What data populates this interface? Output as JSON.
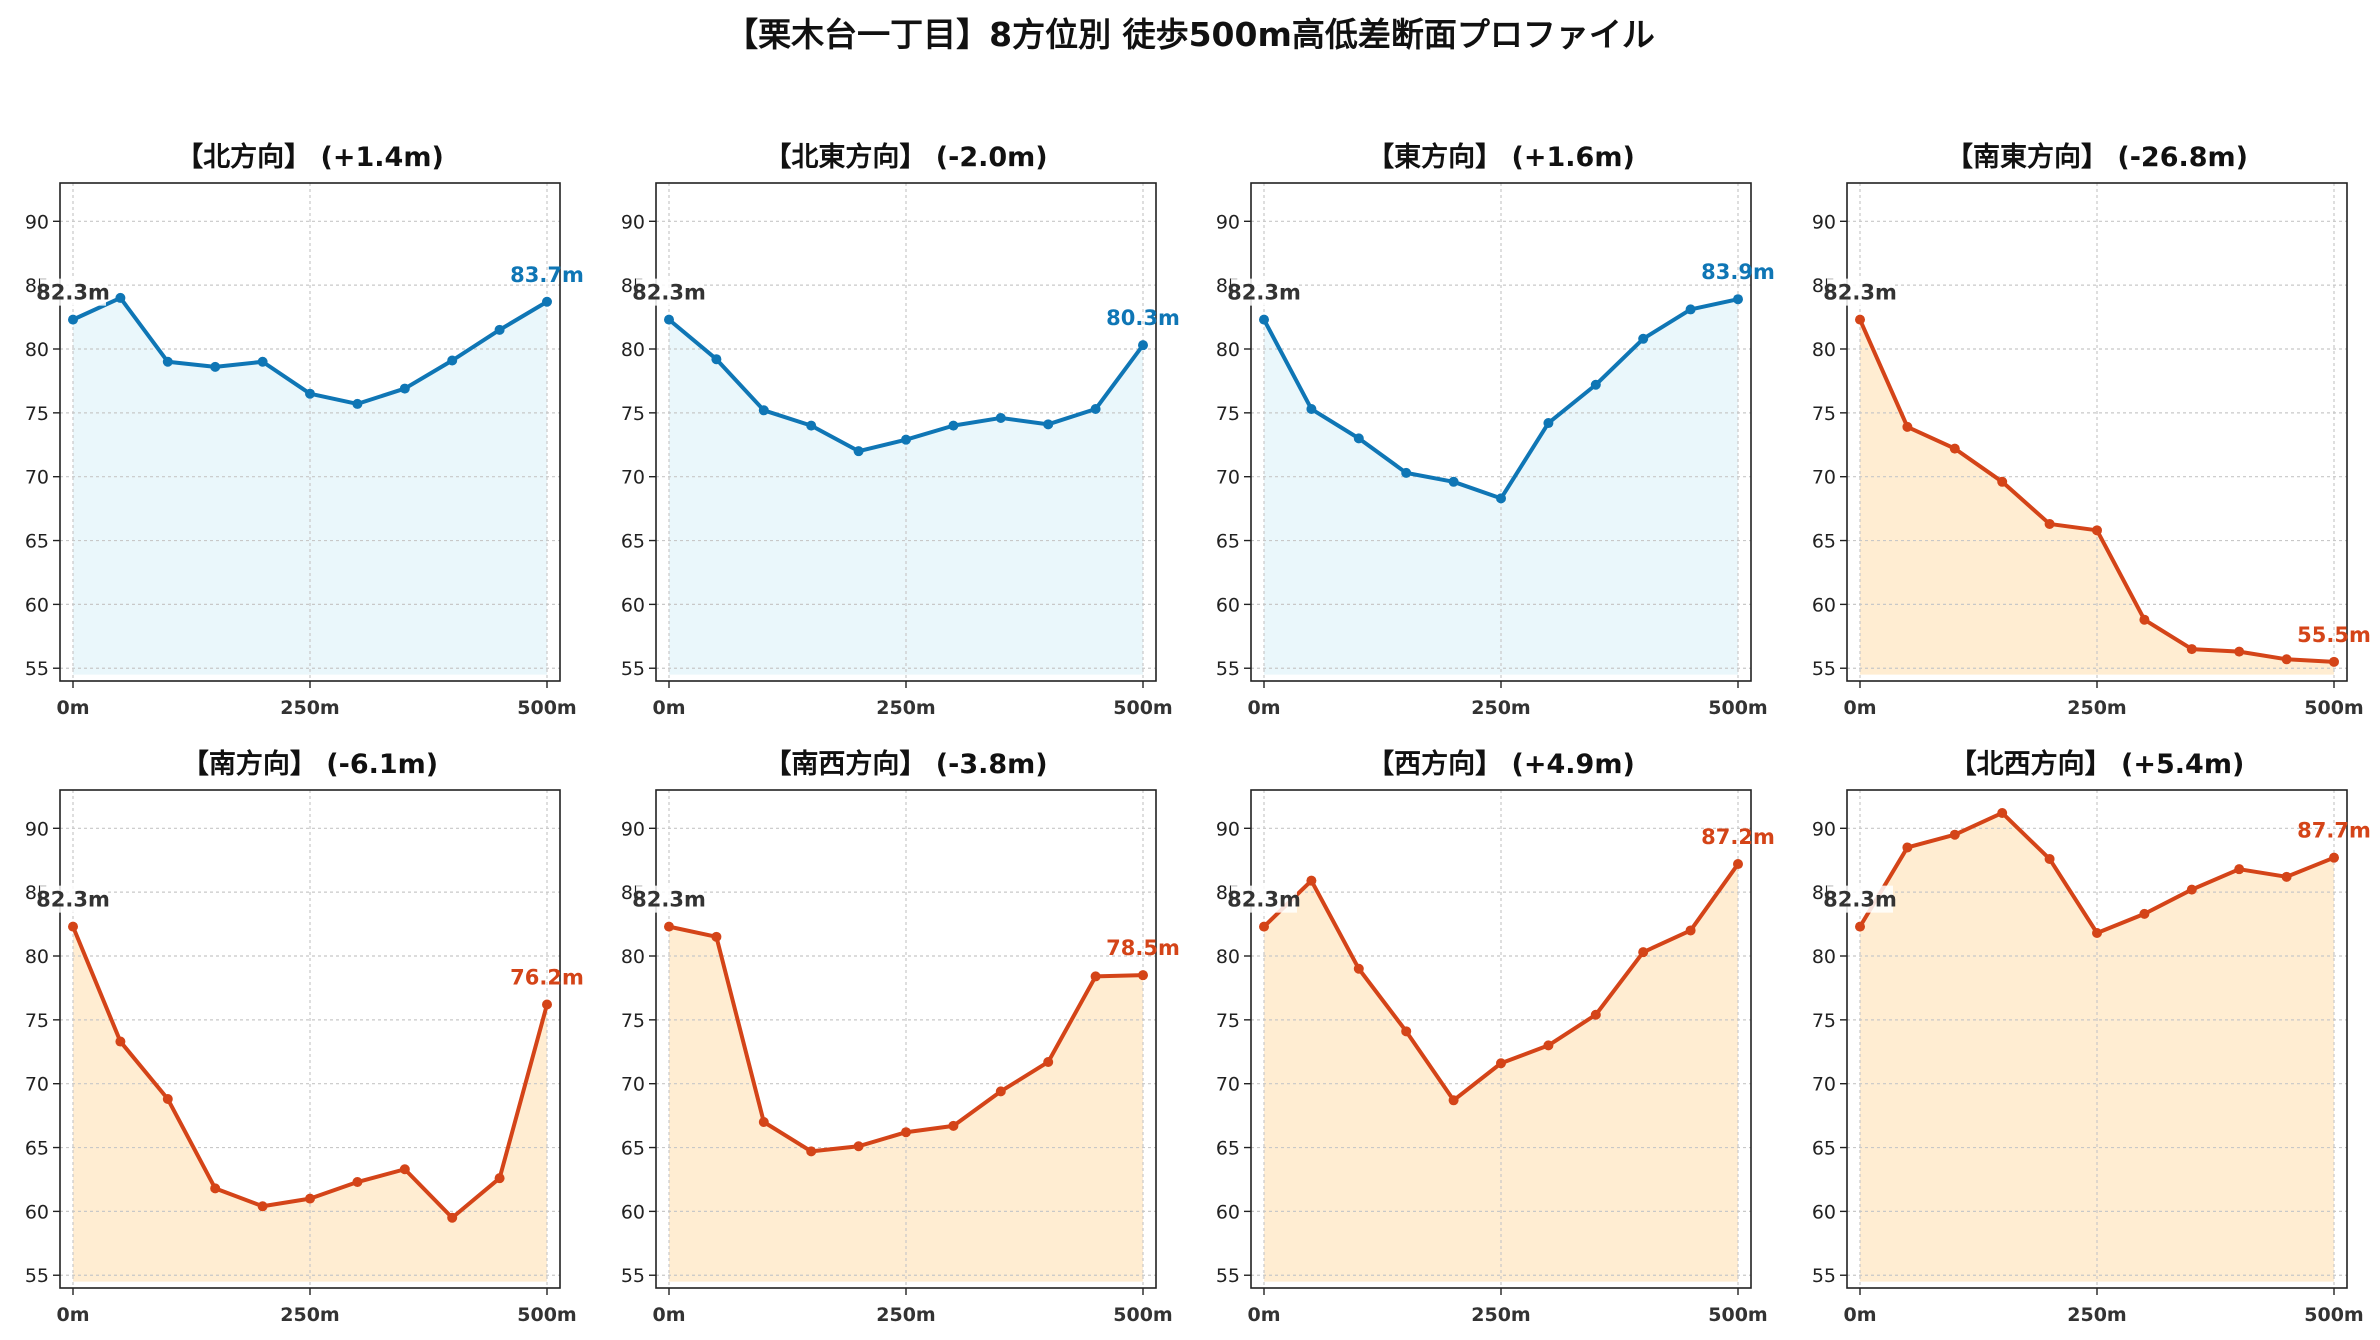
{
  "title": "【栗木台一丁目】8方位別 徒歩500m高低差断面プロファイル",
  "colors": {
    "up_line": "#0f76b5",
    "up_fill": "#eaf7fb",
    "down_line": "#d44418",
    "down_fill": "#ffedd2",
    "start_label": "#333333"
  },
  "chart_data": [
    {
      "type": "line",
      "title": "【北方向】 (+1.4m)",
      "trend": "up",
      "x": [
        0,
        50,
        100,
        150,
        200,
        250,
        300,
        350,
        400,
        450,
        500
      ],
      "values": [
        82.3,
        84.0,
        79.0,
        78.6,
        79.0,
        76.5,
        75.7,
        76.9,
        79.1,
        81.5,
        83.7
      ],
      "start_label": "82.3m",
      "end_label": "83.7m",
      "xticks": [
        "0m",
        "250m",
        "500m"
      ],
      "ylim": [
        54,
        93
      ],
      "yticks": [
        55,
        60,
        65,
        70,
        75,
        80,
        85,
        90
      ],
      "grid": true
    },
    {
      "type": "line",
      "title": "【北東方向】 (-2.0m)",
      "trend": "up",
      "x": [
        0,
        50,
        100,
        150,
        200,
        250,
        300,
        350,
        400,
        450,
        500
      ],
      "values": [
        82.3,
        79.2,
        75.2,
        74.0,
        72.0,
        72.9,
        74.0,
        74.6,
        74.1,
        75.3,
        80.3
      ],
      "start_label": "82.3m",
      "end_label": "80.3m",
      "xticks": [
        "0m",
        "250m",
        "500m"
      ],
      "ylim": [
        54,
        93
      ],
      "yticks": [
        55,
        60,
        65,
        70,
        75,
        80,
        85,
        90
      ],
      "grid": true
    },
    {
      "type": "line",
      "title": "【東方向】 (+1.6m)",
      "trend": "up",
      "x": [
        0,
        50,
        100,
        150,
        200,
        250,
        300,
        350,
        400,
        450,
        500
      ],
      "values": [
        82.3,
        75.3,
        73.0,
        70.3,
        69.6,
        68.3,
        74.2,
        77.2,
        80.8,
        83.1,
        83.9
      ],
      "start_label": "82.3m",
      "end_label": "83.9m",
      "xticks": [
        "0m",
        "250m",
        "500m"
      ],
      "ylim": [
        54,
        93
      ],
      "yticks": [
        55,
        60,
        65,
        70,
        75,
        80,
        85,
        90
      ],
      "grid": true
    },
    {
      "type": "line",
      "title": "【南東方向】 (-26.8m)",
      "trend": "down",
      "x": [
        0,
        50,
        100,
        150,
        200,
        250,
        300,
        350,
        400,
        450,
        500
      ],
      "values": [
        82.3,
        73.9,
        72.2,
        69.6,
        66.3,
        65.8,
        58.8,
        56.5,
        56.3,
        55.7,
        55.5
      ],
      "start_label": "82.3m",
      "end_label": "55.5m",
      "xticks": [
        "0m",
        "250m",
        "500m"
      ],
      "ylim": [
        54,
        93
      ],
      "yticks": [
        55,
        60,
        65,
        70,
        75,
        80,
        85,
        90
      ],
      "grid": true
    },
    {
      "type": "line",
      "title": "【南方向】 (-6.1m)",
      "trend": "down",
      "x": [
        0,
        50,
        100,
        150,
        200,
        250,
        300,
        350,
        400,
        450,
        500
      ],
      "values": [
        82.3,
        73.3,
        68.8,
        61.8,
        60.4,
        61.0,
        62.3,
        63.3,
        59.5,
        62.6,
        76.2
      ],
      "start_label": "82.3m",
      "end_label": "76.2m",
      "xticks": [
        "0m",
        "250m",
        "500m"
      ],
      "ylim": [
        54,
        93
      ],
      "yticks": [
        55,
        60,
        65,
        70,
        75,
        80,
        85,
        90
      ],
      "grid": true
    },
    {
      "type": "line",
      "title": "【南西方向】 (-3.8m)",
      "trend": "down",
      "x": [
        0,
        50,
        100,
        150,
        200,
        250,
        300,
        350,
        400,
        450,
        500
      ],
      "values": [
        82.3,
        81.5,
        67.0,
        64.7,
        65.1,
        66.2,
        66.7,
        69.4,
        71.7,
        78.4,
        78.5
      ],
      "start_label": "82.3m",
      "end_label": "78.5m",
      "xticks": [
        "0m",
        "250m",
        "500m"
      ],
      "ylim": [
        54,
        93
      ],
      "yticks": [
        55,
        60,
        65,
        70,
        75,
        80,
        85,
        90
      ],
      "grid": true
    },
    {
      "type": "line",
      "title": "【西方向】 (+4.9m)",
      "trend": "down",
      "x": [
        0,
        50,
        100,
        150,
        200,
        250,
        300,
        350,
        400,
        450,
        500
      ],
      "values": [
        82.3,
        85.9,
        79.0,
        74.1,
        68.7,
        71.6,
        73.0,
        75.4,
        80.3,
        82.0,
        87.2
      ],
      "start_label": "82.3m",
      "end_label": "87.2m",
      "xticks": [
        "0m",
        "250m",
        "500m"
      ],
      "ylim": [
        54,
        93
      ],
      "yticks": [
        55,
        60,
        65,
        70,
        75,
        80,
        85,
        90
      ],
      "grid": true
    },
    {
      "type": "line",
      "title": "【北西方向】 (+5.4m)",
      "trend": "down",
      "x": [
        0,
        50,
        100,
        150,
        200,
        250,
        300,
        350,
        400,
        450,
        500
      ],
      "values": [
        82.3,
        88.5,
        89.5,
        91.2,
        87.6,
        81.8,
        83.3,
        85.2,
        86.8,
        86.2,
        87.7
      ],
      "start_label": "82.3m",
      "end_label": "87.7m",
      "xticks": [
        "0m",
        "250m",
        "500m"
      ],
      "ylim": [
        54,
        93
      ],
      "yticks": [
        55,
        60,
        65,
        70,
        75,
        80,
        85,
        90
      ],
      "grid": true
    }
  ]
}
